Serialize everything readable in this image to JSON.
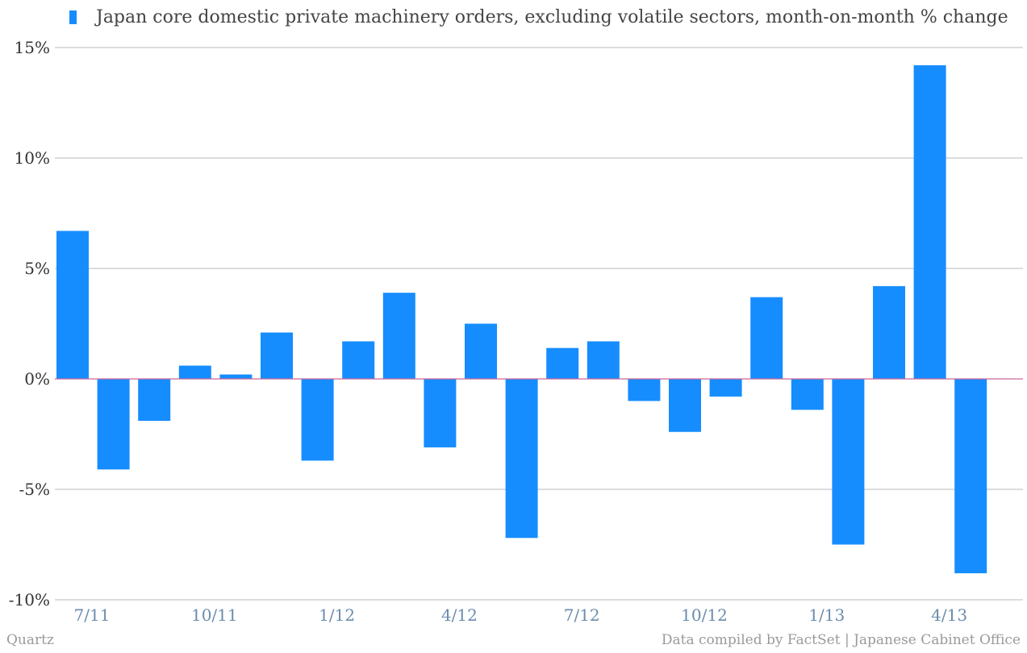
{
  "colors": {
    "bar": "#168dff",
    "zero_line": "#cc6699",
    "grid": "#b8b8b8"
  },
  "footer": {
    "brand": "Quartz",
    "source": "Data compiled by FactSet | Japanese Cabinet Office"
  },
  "chart_data": {
    "type": "bar",
    "series": [
      {
        "name": "Japan core domestic private machinery orders, excluding volatile sectors, month-on-month % change",
        "values": [
          6.7,
          -4.1,
          -1.9,
          0.6,
          0.2,
          2.1,
          -3.7,
          1.7,
          3.9,
          -3.1,
          2.5,
          -7.2,
          1.4,
          1.7,
          -1.0,
          -2.4,
          -0.8,
          3.7,
          -1.4,
          -7.5,
          4.2,
          14.2,
          -8.8
        ]
      }
    ],
    "categories": [
      "7/11",
      "8/11",
      "9/11",
      "10/11",
      "11/11",
      "12/11",
      "1/12",
      "2/12",
      "3/12",
      "4/12",
      "5/12",
      "6/12",
      "7/12",
      "8/12",
      "9/12",
      "10/12",
      "11/12",
      "12/12",
      "1/13",
      "2/13",
      "3/13",
      "4/13",
      "5/13"
    ],
    "x_tick_labels": [
      "7/11",
      "10/11",
      "1/12",
      "4/12",
      "7/12",
      "10/12",
      "1/13",
      "4/13"
    ],
    "x_tick_indices": [
      0,
      3,
      6,
      9,
      12,
      15,
      18,
      21
    ],
    "y_ticks": [
      15,
      10,
      5,
      0,
      -5,
      -10
    ],
    "y_tick_labels": [
      "15%",
      "10%",
      "5%",
      "0%",
      "-5%",
      "-10%"
    ],
    "ylim": [
      -10,
      15
    ],
    "grid": true,
    "legend_position": "top-left"
  }
}
